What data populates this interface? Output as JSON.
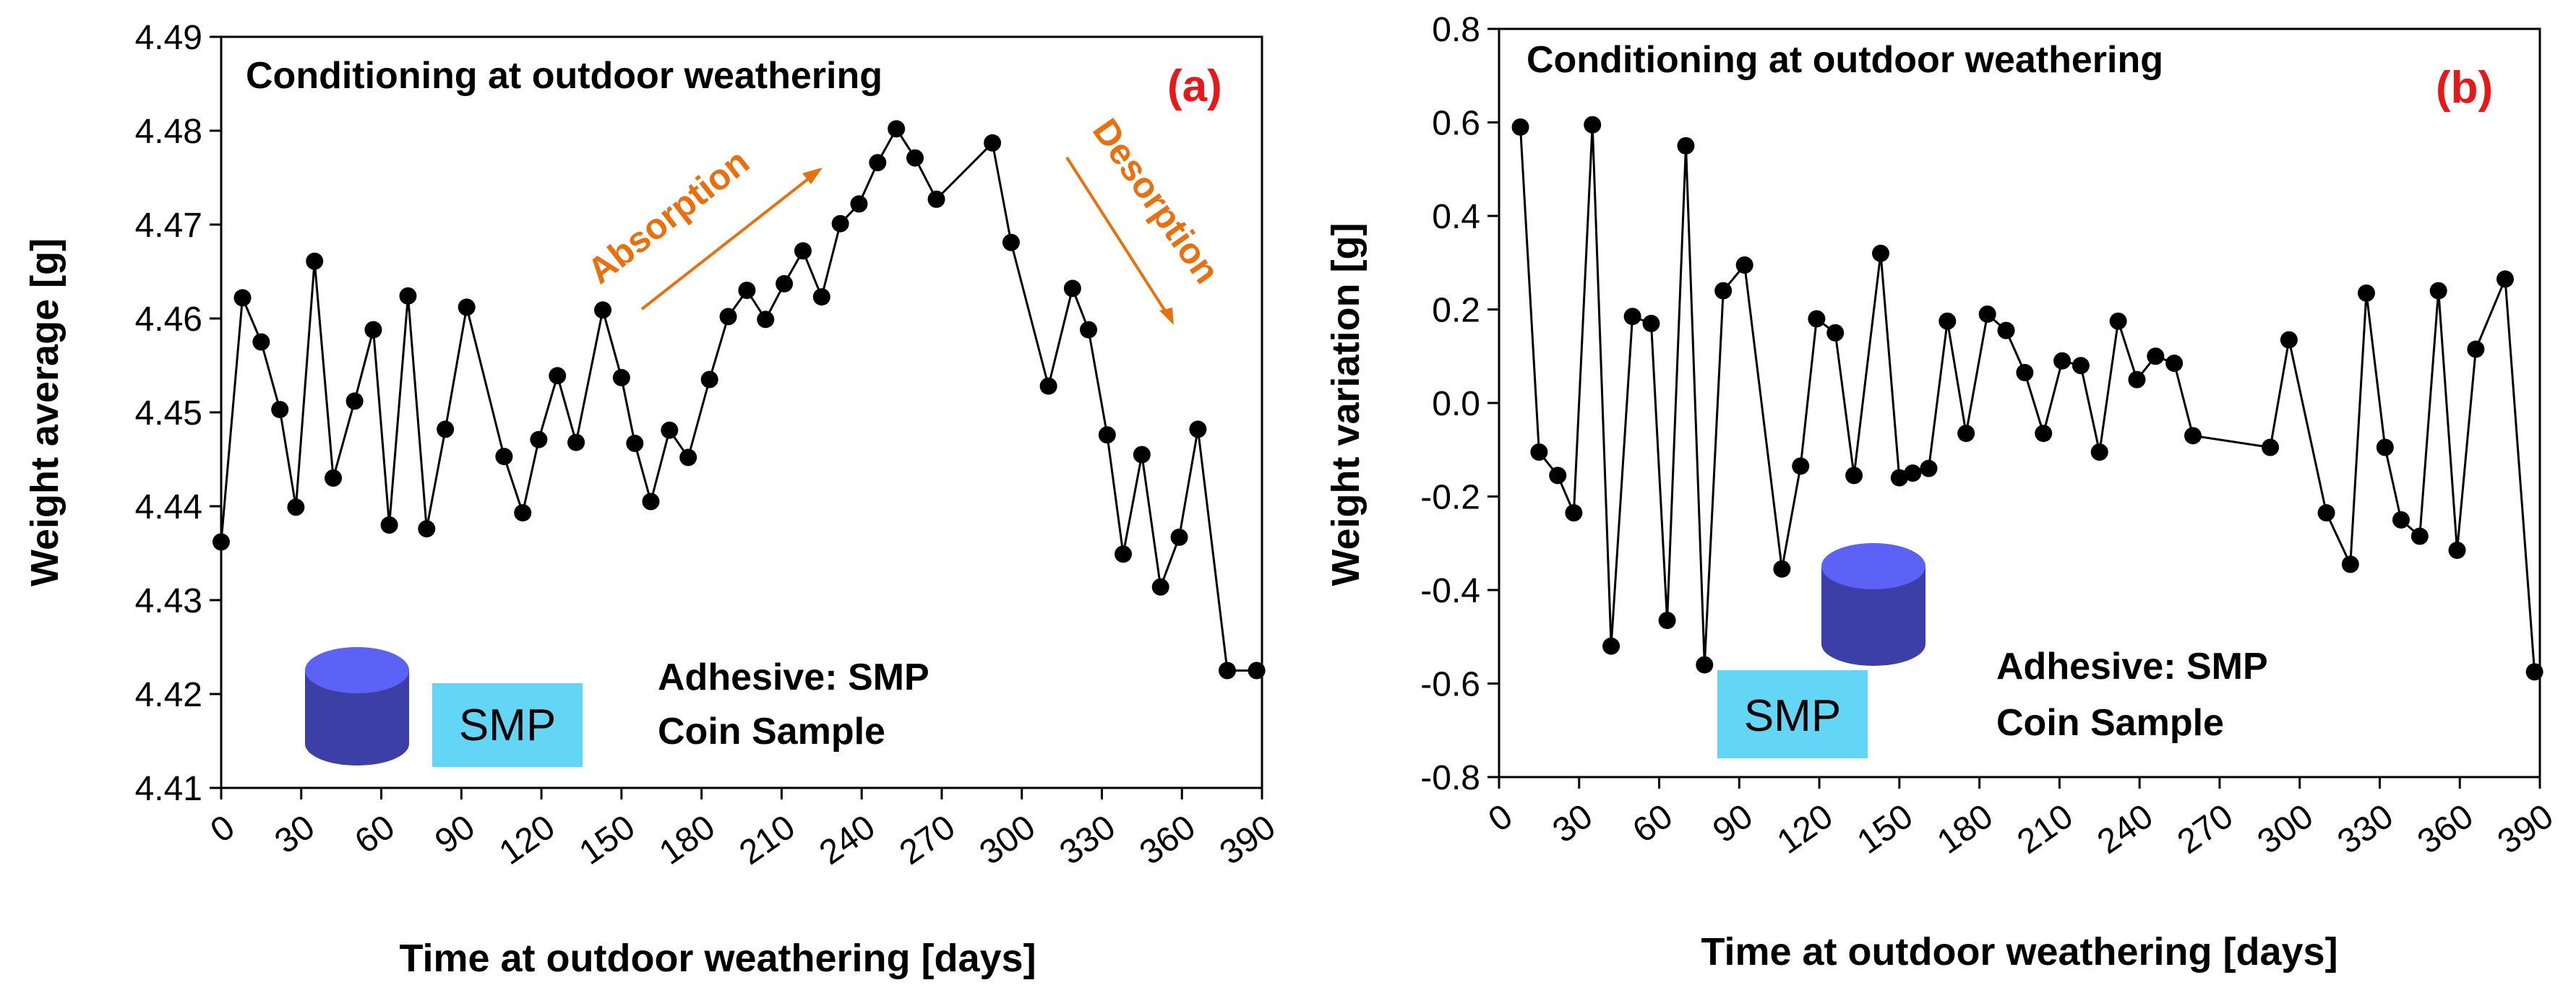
{
  "chart_data": [
    {
      "type": "line",
      "panel_label": "(a)",
      "title": "Conditioning at outdoor weathering",
      "xlabel": "Time at outdoor weathering [days]",
      "ylabel": "Weight average [g]",
      "xlim": [
        0,
        390
      ],
      "ylim": [
        4.41,
        4.49
      ],
      "xticks": [
        "0",
        "30",
        "60",
        "90",
        "120",
        "150",
        "180",
        "210",
        "240",
        "270",
        "300",
        "330",
        "360",
        "390"
      ],
      "yticks": [
        "4.41",
        "4.42",
        "4.43",
        "4.44",
        "4.45",
        "4.46",
        "4.47",
        "4.48",
        "4.49"
      ],
      "annotations": {
        "absorption": "Absorption",
        "desorption": "Desorption",
        "adhesive": "Adhesive: SMP",
        "sample": "Coin Sample",
        "legend_label": "SMP"
      },
      "series": [
        {
          "name": "Weight average",
          "x": [
            0,
            8,
            15,
            22,
            28,
            35,
            42,
            50,
            57,
            63,
            70,
            77,
            84,
            92,
            106,
            113,
            119,
            126,
            133,
            143,
            150,
            155,
            161,
            168,
            175,
            183,
            190,
            197,
            204,
            211,
            218,
            225,
            232,
            239,
            246,
            253,
            260,
            268,
            289,
            296,
            310,
            319,
            325,
            332,
            338,
            345,
            352,
            359,
            366,
            377,
            388
          ],
          "y": [
            4.4362,
            4.4622,
            4.4575,
            4.4503,
            4.4399,
            4.4661,
            4.443,
            4.4512,
            4.4588,
            4.438,
            4.4624,
            4.4376,
            4.4482,
            4.4612,
            4.4453,
            4.4393,
            4.4471,
            4.4539,
            4.4468,
            4.4609,
            4.4537,
            4.4467,
            4.4405,
            4.4481,
            4.4452,
            4.4535,
            4.4602,
            4.463,
            4.4599,
            4.4637,
            4.4672,
            4.4623,
            4.4701,
            4.4722,
            4.4766,
            4.4802,
            4.4771,
            4.4727,
            4.4787,
            4.4681,
            4.4528,
            4.4632,
            4.4588,
            4.4476,
            4.4349,
            4.4455,
            4.4314,
            4.4367,
            4.4482,
            4.4225,
            4.4225
          ]
        }
      ]
    },
    {
      "type": "line",
      "panel_label": "(b)",
      "title": "Conditioning at outdoor weathering",
      "xlabel": "Time at outdoor weathering [days]",
      "ylabel": "Weight variation [g]",
      "xlim": [
        0,
        390
      ],
      "ylim": [
        -0.8,
        0.8
      ],
      "xticks": [
        "0",
        "30",
        "60",
        "90",
        "120",
        "150",
        "180",
        "210",
        "240",
        "270",
        "300",
        "330",
        "360",
        "390"
      ],
      "yticks": [
        "-0.8",
        "-0.6",
        "-0.4",
        "-0.2",
        "0.0",
        "0.2",
        "0.4",
        "0.6",
        "0.8"
      ],
      "annotations": {
        "adhesive": "Adhesive: SMP",
        "sample": "Coin Sample",
        "legend_label": "SMP"
      },
      "series": [
        {
          "name": "Weight variation",
          "x": [
            8,
            15,
            22,
            28,
            35,
            42,
            50,
            57,
            63,
            70,
            77,
            84,
            92,
            106,
            113,
            119,
            126,
            133,
            143,
            150,
            155,
            161,
            168,
            175,
            183,
            190,
            197,
            204,
            211,
            218,
            225,
            232,
            239,
            246,
            253,
            260,
            289,
            296,
            310,
            319,
            325,
            332,
            338,
            345,
            352,
            359,
            366,
            377,
            388
          ],
          "y": [
            0.59,
            -0.105,
            -0.155,
            -0.235,
            0.595,
            -0.52,
            0.185,
            0.17,
            -0.465,
            0.55,
            -0.56,
            0.24,
            0.295,
            -0.355,
            -0.135,
            0.18,
            0.15,
            -0.155,
            0.32,
            -0.16,
            -0.15,
            -0.14,
            0.175,
            -0.065,
            0.19,
            0.155,
            0.065,
            -0.065,
            0.09,
            0.08,
            -0.105,
            0.175,
            0.05,
            0.1,
            0.085,
            -0.07,
            -0.095,
            0.135,
            -0.235,
            -0.345,
            0.235,
            -0.095,
            -0.25,
            -0.285,
            0.24,
            -0.315,
            0.115,
            0.265,
            -0.575
          ]
        }
      ]
    }
  ]
}
